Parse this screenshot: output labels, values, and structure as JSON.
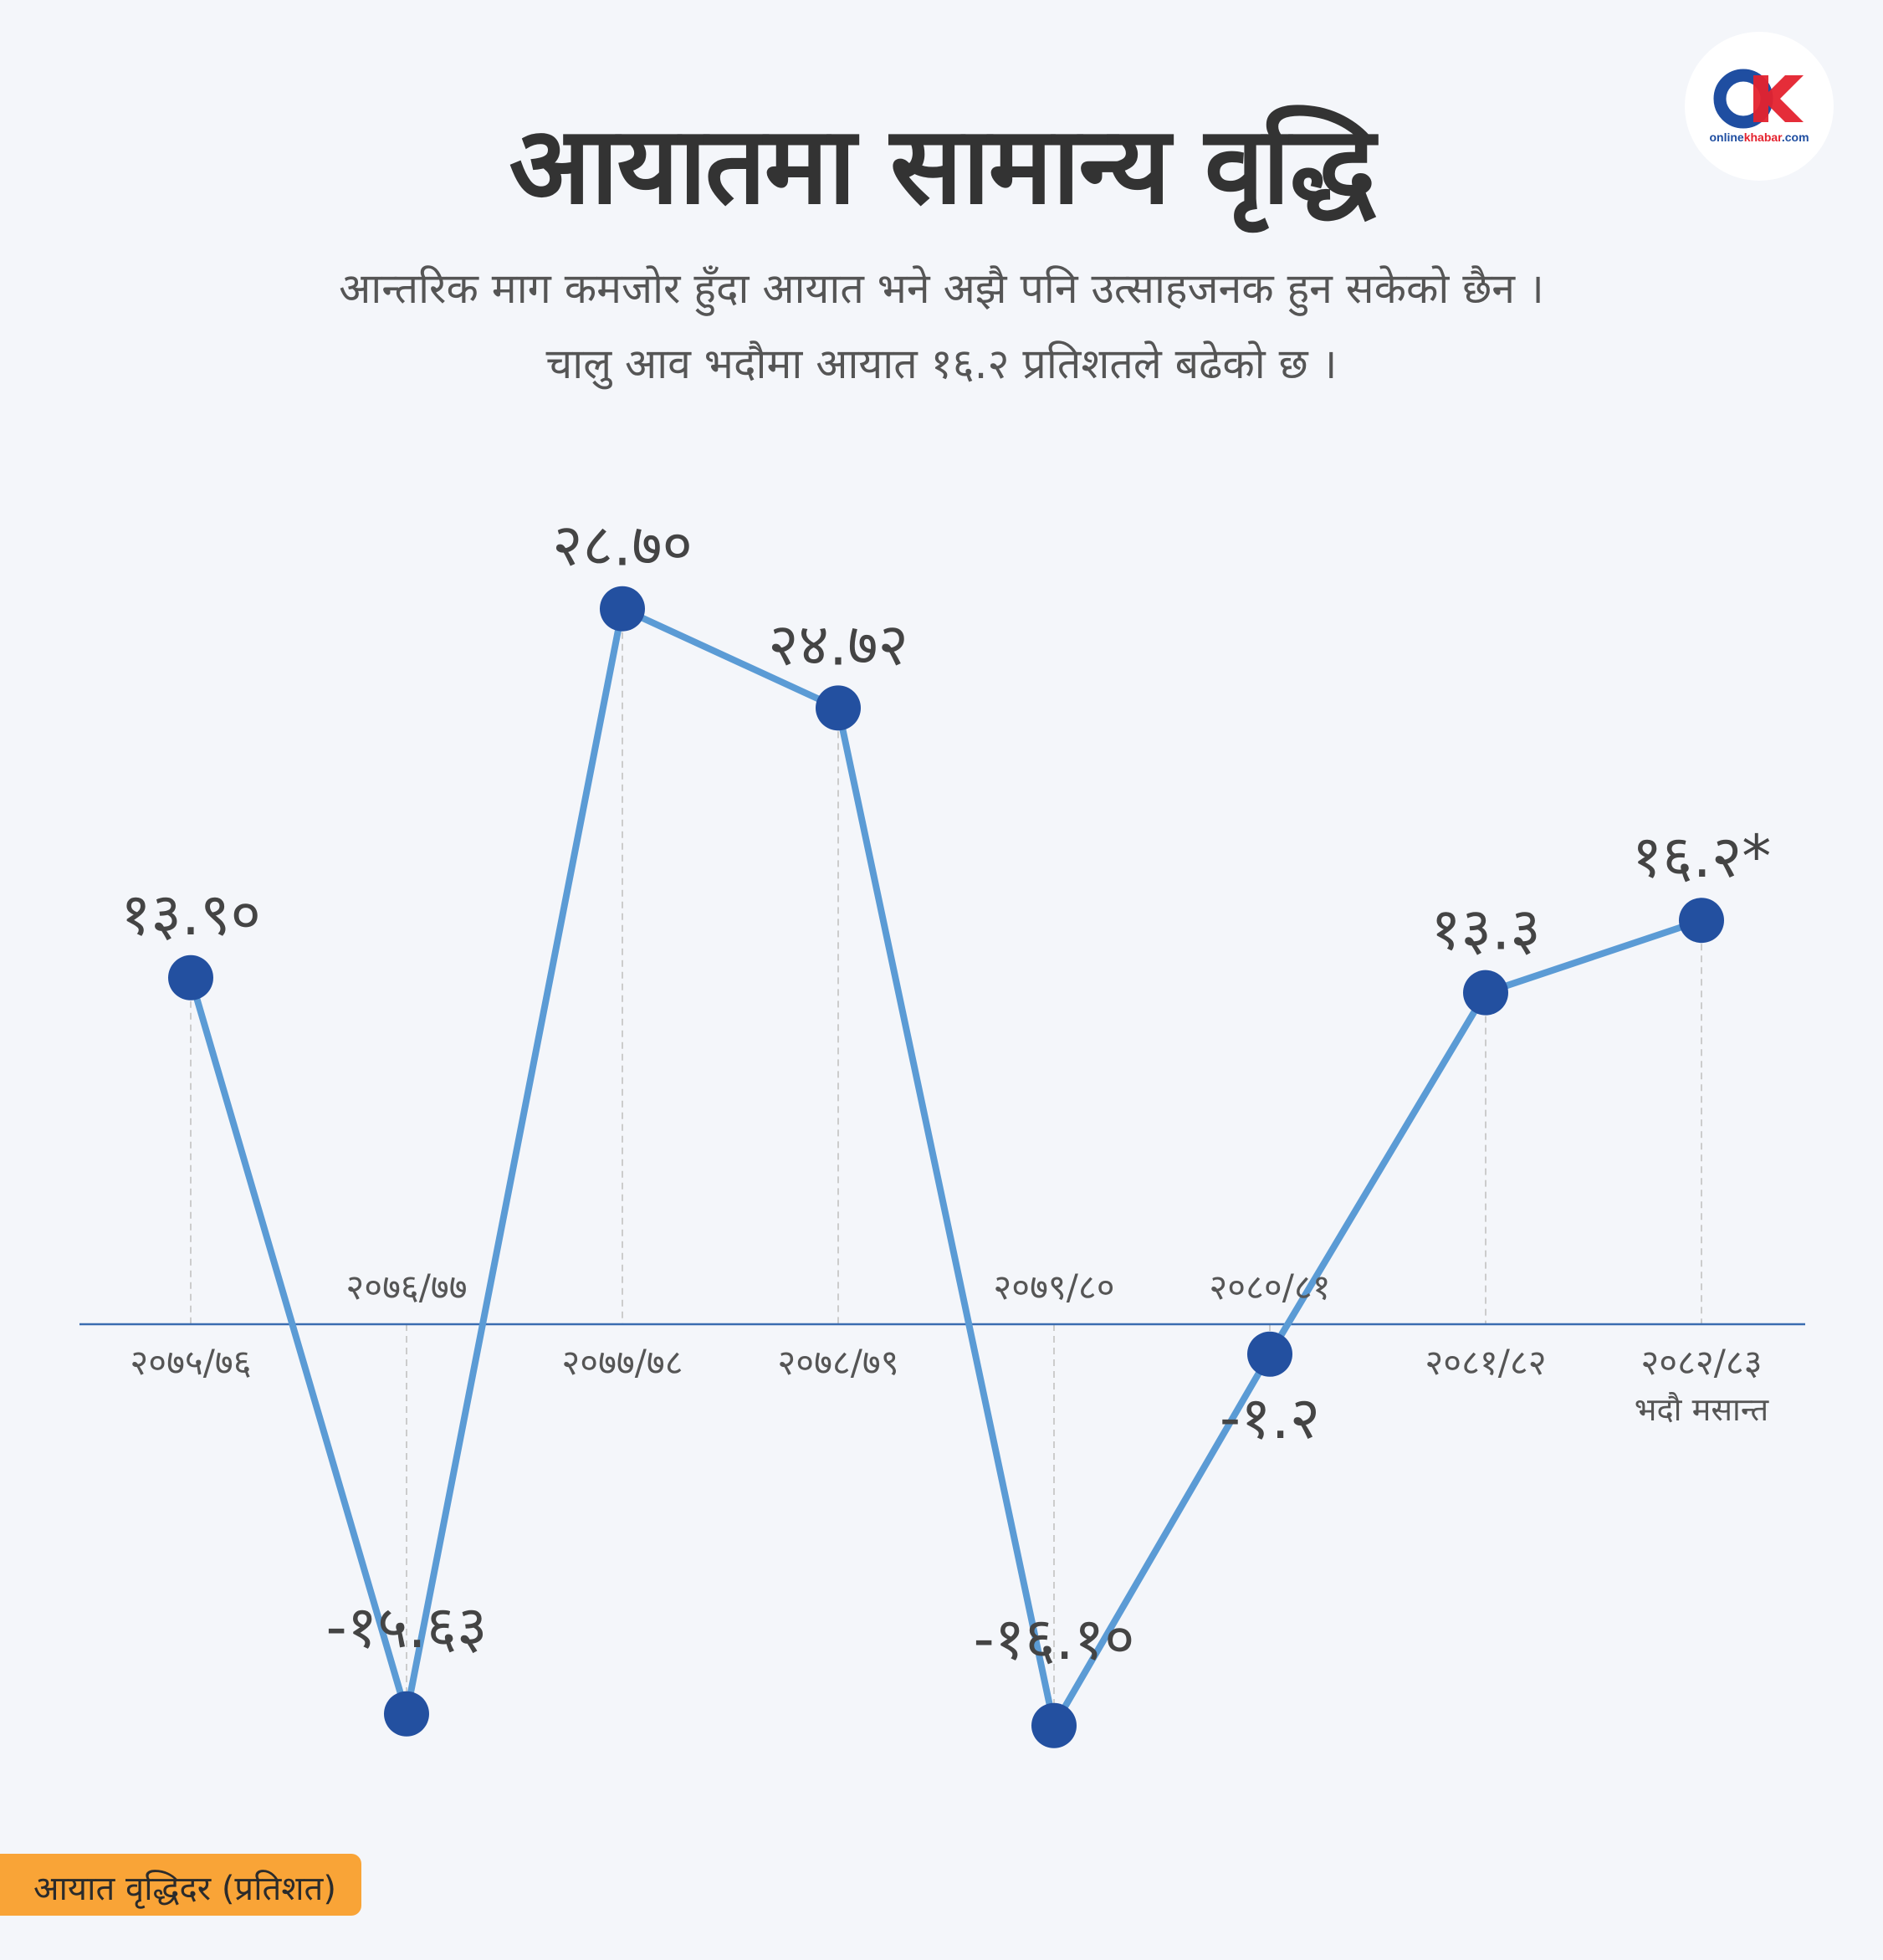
{
  "header": {
    "title": "आयातमा सामान्य वृद्धि",
    "subtitle_line1": "आन्तरिक माग कमजोर हुँदा आयात भने अझै पनि उत्साहजनक हुन सकेको छैन ।",
    "subtitle_line2": "चालु आव भदौमा आयात १६.२ प्रतिशतले बढेको छ ।"
  },
  "logo": {
    "letters": "OK",
    "brand_online": "online",
    "brand_khabar": "khabar",
    "brand_suffix": ".com"
  },
  "legend": {
    "label": "आयात वृद्धिदर  (प्रतिशत)"
  },
  "colors": {
    "line": "#5b9bd5",
    "marker": "#2350a0",
    "axis": "#3a6cb0",
    "guide": "#cccccc",
    "legend_bg": "#f9a437",
    "logo_blue": "#1f4ea1",
    "logo_red": "#e4222e"
  },
  "chart_data": {
    "type": "line",
    "title": "आयातमा सामान्य वृद्धि",
    "xlabel": "",
    "ylabel": "आयात वृद्धिदर  (प्रतिशत)",
    "categories": [
      "२०७५/७६",
      "२०७६/७७",
      "२०७७/७८",
      "२०७८/७९",
      "२०७९/८०",
      "२०८०/८१",
      "२०८१/८२",
      "२०८२/८३"
    ],
    "category_sublabels": [
      "",
      "",
      "",
      "",
      "",
      "",
      "",
      "भदौ मसान्त"
    ],
    "series": [
      {
        "name": "",
        "values": [
          13.9,
          -15.63,
          28.7,
          24.72,
          -16.1,
          -1.2,
          13.3,
          16.2
        ],
        "labels": [
          "१३.९०",
          "-१५.६३",
          "२८.७०",
          "२४.७२",
          "-१६.१०",
          "-१.२",
          "१३.३",
          "१६.२*"
        ]
      }
    ],
    "ylim": [
      -17,
      30
    ],
    "grid": false,
    "legend": "bottom-left"
  }
}
